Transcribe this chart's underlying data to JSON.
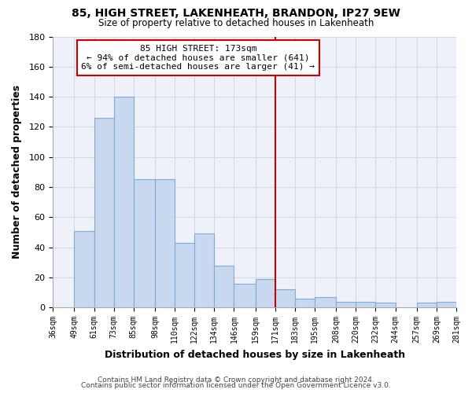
{
  "title": "85, HIGH STREET, LAKENHEATH, BRANDON, IP27 9EW",
  "subtitle": "Size of property relative to detached houses in Lakenheath",
  "xlabel": "Distribution of detached houses by size in Lakenheath",
  "ylabel": "Number of detached properties",
  "bin_edges": [
    36,
    49,
    61,
    73,
    85,
    98,
    110,
    122,
    134,
    146,
    159,
    171,
    183,
    195,
    208,
    220,
    232,
    244,
    257,
    269,
    281
  ],
  "bar_heights": [
    0,
    51,
    126,
    140,
    85,
    85,
    43,
    49,
    28,
    16,
    19,
    12,
    6,
    7,
    4,
    4,
    3,
    0,
    3,
    4
  ],
  "tick_labels": [
    "36sqm",
    "49sqm",
    "61sqm",
    "73sqm",
    "85sqm",
    "98sqm",
    "110sqm",
    "122sqm",
    "134sqm",
    "146sqm",
    "159sqm",
    "171sqm",
    "183sqm",
    "195sqm",
    "208sqm",
    "220sqm",
    "232sqm",
    "244sqm",
    "257sqm",
    "269sqm",
    "281sqm"
  ],
  "bar_color": "#c8d9ef",
  "bar_edge_color": "#7aacd6",
  "vline_x": 171,
  "vline_color": "#cc0000",
  "annotation_text": "85 HIGH STREET: 173sqm\n← 94% of detached houses are smaller (641)\n6% of semi-detached houses are larger (41) →",
  "annotation_box_color": "#ffffff",
  "annotation_box_edge": "#cc0000",
  "ylim": [
    0,
    180
  ],
  "yticks": [
    0,
    20,
    40,
    60,
    80,
    100,
    120,
    140,
    160,
    180
  ],
  "footer1": "Contains HM Land Registry data © Crown copyright and database right 2024.",
  "footer2": "Contains public sector information licensed under the Open Government Licence v3.0.",
  "background_color": "#ffffff",
  "grid_color": "#d0d8e8"
}
